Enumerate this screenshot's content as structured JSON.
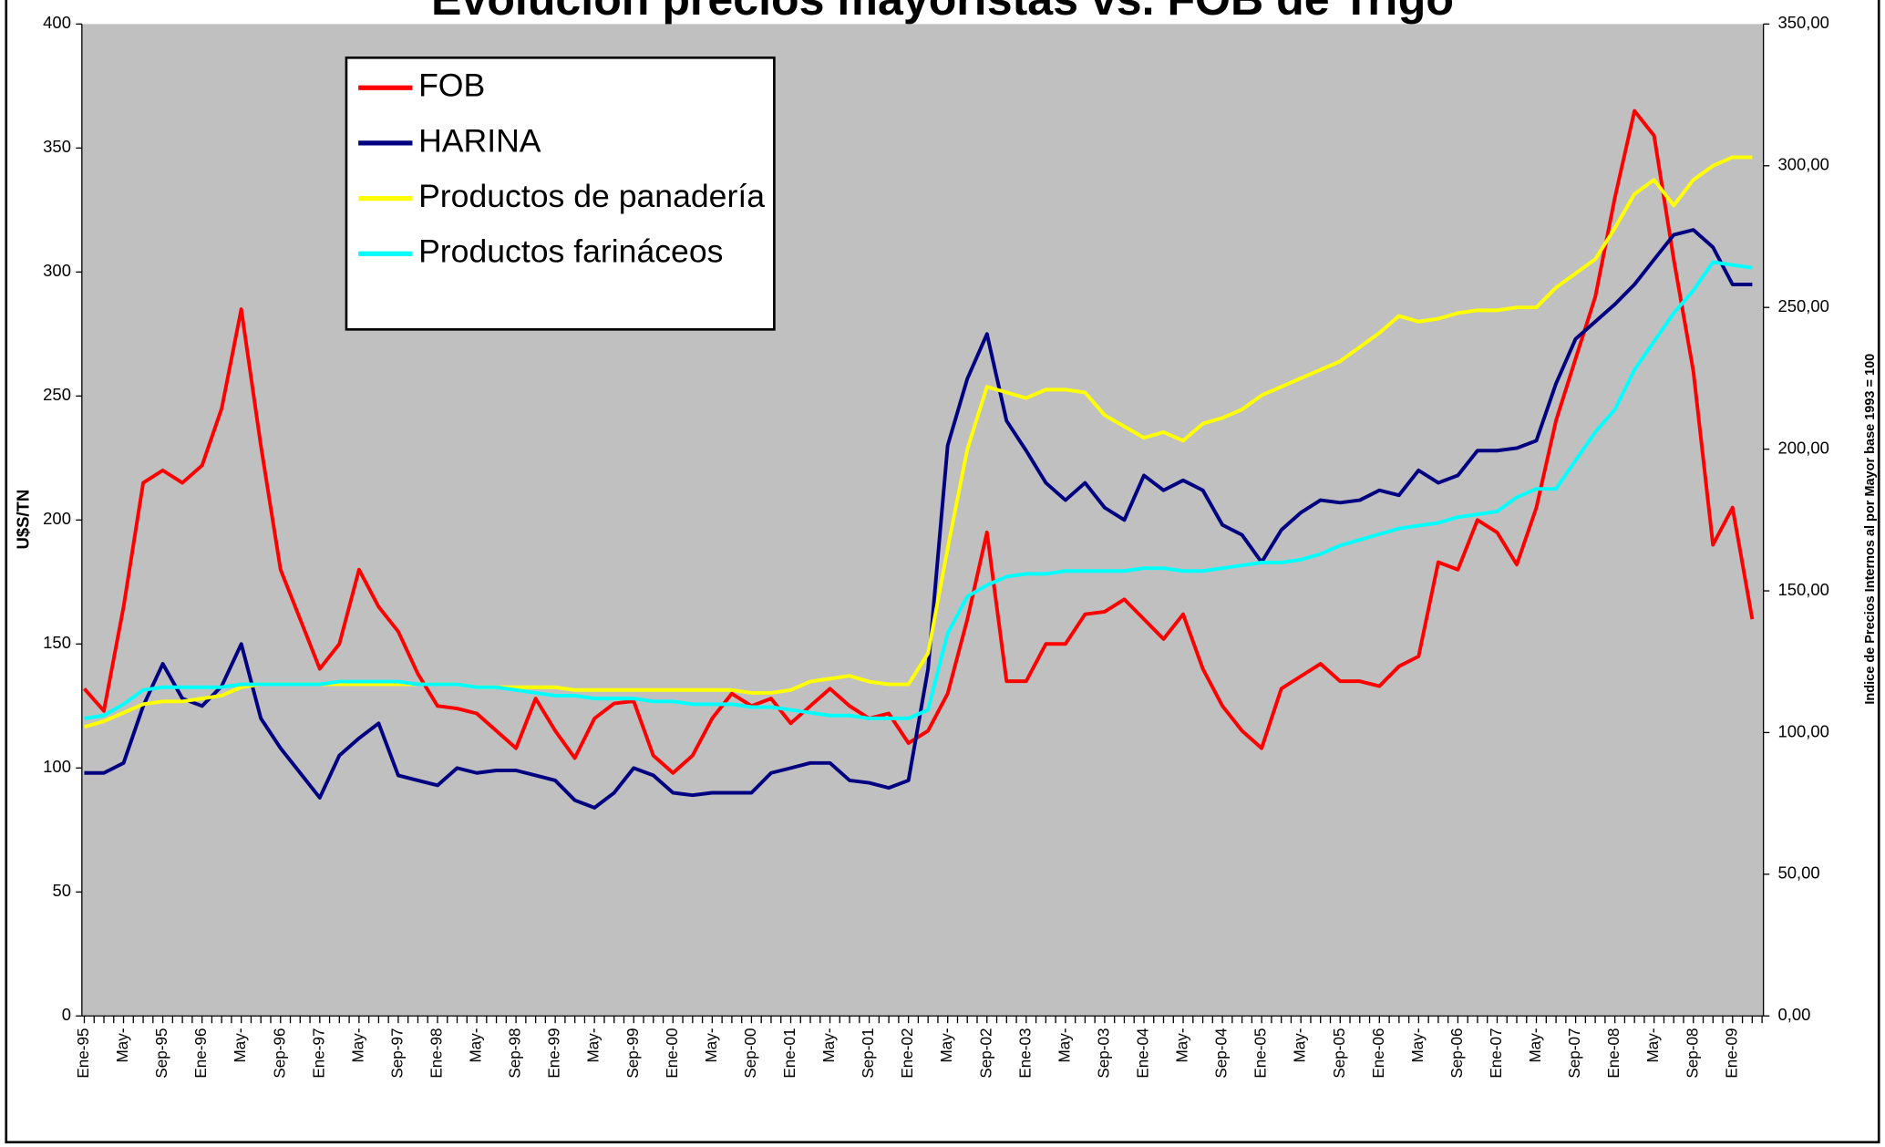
{
  "chart_data": {
    "type": "line",
    "title": "Evolución precios mayoristas vs. FOB de Trigo",
    "y_label": "U$S/TN",
    "y2_label": "Indice de Precios Internos al por Mayor base 1993 = 100",
    "categories": [
      "Ene-95",
      null,
      "May-",
      null,
      "Sep-95",
      null,
      "Ene-96",
      null,
      "May-",
      null,
      "Sep-96",
      null,
      "Ene-97",
      null,
      "May-",
      null,
      "Sep-97",
      null,
      "Ene-98",
      null,
      "May-",
      null,
      "Sep-98",
      null,
      "Ene-99",
      null,
      "May-",
      null,
      "Sep-99",
      null,
      "Ene-00",
      null,
      "May-",
      null,
      "Sep-00",
      null,
      "Ene-01",
      null,
      "May-",
      null,
      "Sep-01",
      null,
      "Ene-02",
      null,
      "May-",
      null,
      "Sep-02",
      null,
      "Ene-03",
      null,
      "May-",
      null,
      "Sep-03",
      null,
      "Ene-04",
      null,
      "May-",
      null,
      "Sep-04",
      null,
      "Ene-05",
      null,
      "May-",
      null,
      "Sep-05",
      null,
      "Ene-06",
      null,
      "May-",
      null,
      "Sep-06",
      null,
      "Ene-07",
      null,
      "May-",
      null,
      "Sep-07",
      null,
      "Ene-08",
      null,
      "May-",
      null,
      "Sep-08",
      null,
      "Ene-09",
      null
    ],
    "series": [
      {
        "name": "FOB",
        "color": "#ff0000",
        "axis": "y",
        "values": [
          132,
          123,
          165,
          215,
          220,
          215,
          222,
          245,
          285,
          230,
          180,
          160,
          140,
          150,
          180,
          165,
          155,
          138,
          125,
          124,
          122,
          115,
          108,
          128,
          115,
          104,
          120,
          126,
          127,
          105,
          98,
          105,
          120,
          130,
          125,
          128,
          118,
          125,
          132,
          125,
          120,
          122,
          110,
          115,
          130,
          160,
          195,
          135,
          135,
          150,
          150,
          162,
          163,
          168,
          160,
          152,
          162,
          140,
          125,
          115,
          108,
          132,
          137,
          142,
          135,
          135,
          133,
          141,
          145,
          183,
          180,
          200,
          195,
          182,
          205,
          240,
          265,
          290,
          330,
          365,
          355,
          305,
          260,
          190,
          205,
          160
        ]
      },
      {
        "name": "HARINA",
        "color": "#000080",
        "axis": "y",
        "values": [
          98,
          98,
          102,
          125,
          142,
          128,
          125,
          133,
          150,
          120,
          108,
          98,
          88,
          105,
          112,
          118,
          97,
          95,
          93,
          100,
          98,
          99,
          99,
          97,
          95,
          87,
          84,
          90,
          100,
          97,
          90,
          89,
          90,
          90,
          90,
          98,
          100,
          102,
          102,
          95,
          94,
          92,
          95,
          140,
          230,
          257,
          275,
          240,
          228,
          215,
          208,
          215,
          205,
          200,
          218,
          212,
          216,
          212,
          198,
          194,
          183,
          196,
          203,
          208,
          207,
          208,
          212,
          210,
          220,
          215,
          218,
          228,
          228,
          229,
          232,
          255,
          273,
          280,
          287,
          295,
          305,
          315,
          317,
          310,
          295,
          295
        ]
      },
      {
        "name": "Productos de panadería",
        "color": "#ffff00",
        "axis": "y2",
        "values": [
          102,
          104,
          107,
          110,
          111,
          111,
          112,
          113,
          116,
          117,
          117,
          117,
          117,
          117,
          117,
          117,
          117,
          117,
          117,
          117,
          116,
          116,
          116,
          116,
          116,
          115,
          115,
          115,
          115,
          115,
          115,
          115,
          115,
          115,
          114,
          114,
          115,
          118,
          119,
          120,
          118,
          117,
          117,
          128,
          165,
          200,
          222,
          220,
          218,
          221,
          221,
          220,
          212,
          208,
          204,
          206,
          203,
          209,
          211,
          214,
          219,
          222,
          225,
          228,
          231,
          236,
          241,
          247,
          245,
          246,
          248,
          249,
          249,
          250,
          250,
          257,
          262,
          267,
          278,
          290,
          295,
          286,
          295,
          300,
          303,
          303
        ]
      },
      {
        "name": "Productos farináceos",
        "color": "#00ffff",
        "axis": "y2",
        "values": [
          105,
          106,
          110,
          115,
          116,
          116,
          116,
          116,
          117,
          117,
          117,
          117,
          117,
          118,
          118,
          118,
          118,
          117,
          117,
          117,
          116,
          116,
          115,
          114,
          113,
          113,
          112,
          112,
          112,
          111,
          111,
          110,
          110,
          110,
          109,
          109,
          108,
          107,
          106,
          106,
          105,
          105,
          105,
          108,
          135,
          148,
          152,
          155,
          156,
          156,
          157,
          157,
          157,
          157,
          158,
          158,
          157,
          157,
          158,
          159,
          160,
          160,
          161,
          163,
          166,
          168,
          170,
          172,
          173,
          174,
          176,
          177,
          178,
          183,
          186,
          186,
          196,
          206,
          214,
          228,
          238,
          248,
          256,
          266,
          265,
          264
        ]
      }
    ],
    "ylim": [
      0,
      400
    ],
    "yticks": [
      0,
      50,
      100,
      150,
      200,
      250,
      300,
      350,
      400
    ],
    "y2lim": [
      0,
      350
    ],
    "y2ticks": [
      {
        "value": 0,
        "label": "0,00"
      },
      {
        "value": 50,
        "label": "50,00"
      },
      {
        "value": 100,
        "label": "100,00"
      },
      {
        "value": 150,
        "label": "150,00"
      },
      {
        "value": 200,
        "label": "200,00"
      },
      {
        "value": 250,
        "label": "250,00"
      },
      {
        "value": 300,
        "label": "300,00"
      },
      {
        "value": 350,
        "label": "350,00"
      }
    ],
    "grid": false,
    "legend": "upper left",
    "plot_background": "#c0c0c0"
  }
}
